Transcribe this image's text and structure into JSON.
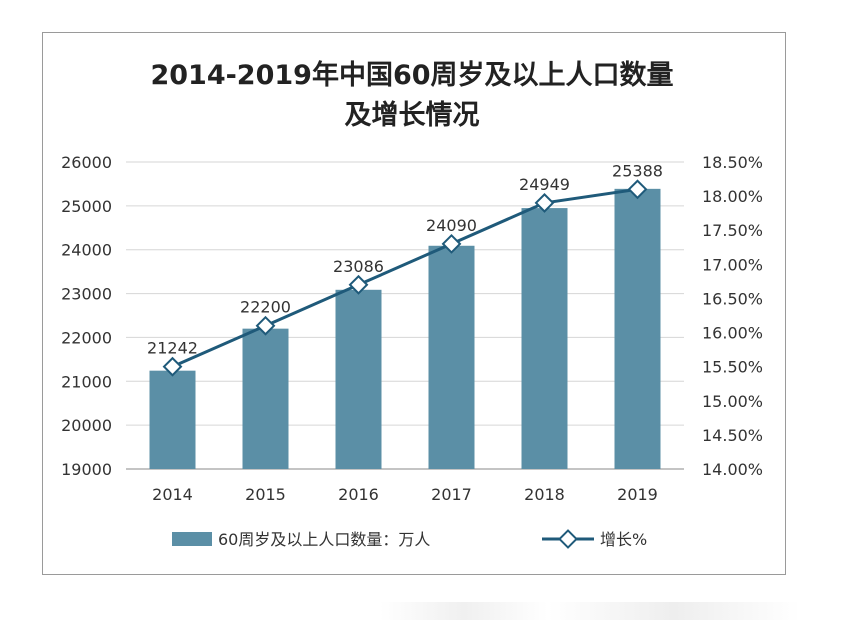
{
  "chart_data": {
    "type": "bar",
    "title_line1": "2014-2019年中国60周岁及以上人口数量",
    "title_line2": "及增长情况",
    "categories": [
      "2014",
      "2015",
      "2016",
      "2017",
      "2018",
      "2019"
    ],
    "series": [
      {
        "name": "60周岁及以上人口数量：万人",
        "type": "bar",
        "axis": "left",
        "values": [
          21242,
          22200,
          23086,
          24090,
          24949,
          25388
        ],
        "data_labels": [
          "21242",
          "22200",
          "23086",
          "24090",
          "24949",
          "25388"
        ],
        "color": "#5b8fa6"
      },
      {
        "name": "增长%",
        "type": "line",
        "axis": "right",
        "values": [
          15.5,
          16.1,
          16.7,
          17.3,
          17.9,
          18.1
        ],
        "color": "#1f5a7a"
      }
    ],
    "y_left": {
      "min": 19000,
      "max": 26000,
      "ticks": [
        "19000",
        "20000",
        "21000",
        "22000",
        "23000",
        "24000",
        "25000",
        "26000"
      ]
    },
    "y_right": {
      "min": 14.0,
      "max": 18.5,
      "ticks": [
        "14.00%",
        "14.50%",
        "15.00%",
        "15.50%",
        "16.00%",
        "16.50%",
        "17.00%",
        "17.50%",
        "18.00%",
        "18.50%"
      ]
    },
    "grid": true,
    "legend_position": "bottom"
  }
}
